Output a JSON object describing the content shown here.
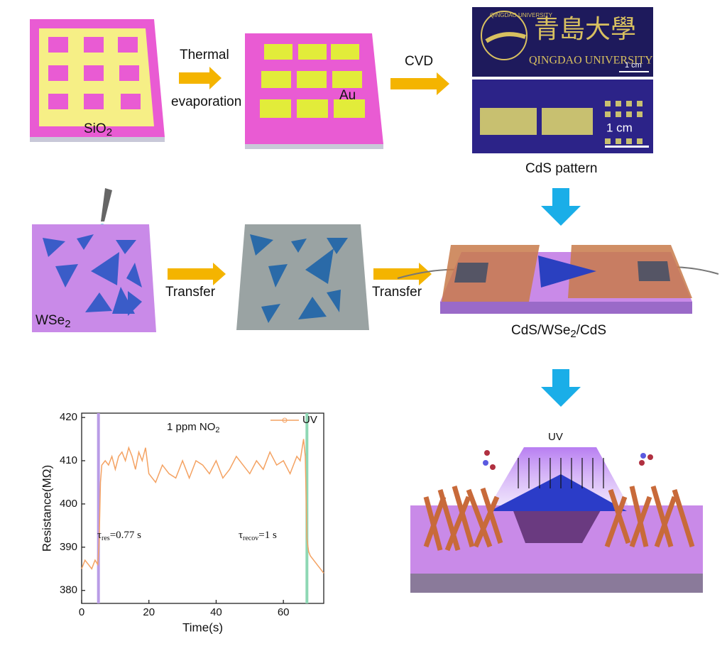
{
  "step1": {
    "substrate_label": [
      "SiO",
      "2"
    ]
  },
  "arrow1": {
    "label_top": "Thermal",
    "label_bottom": "evaporation"
  },
  "step2": {
    "label": "Au"
  },
  "arrow2": {
    "label": "CVD"
  },
  "photo": {
    "logo_chinese": "青島大學",
    "logo_english": "QINGDAO UNIVERSITY",
    "logo_ring": "QINGDAO UNIVERSITY",
    "scale_top": "1 cm",
    "scale_bottom": "1 cm",
    "caption": "CdS pattern"
  },
  "step3": {
    "label": [
      "WSe",
      "2"
    ]
  },
  "arrow3": {
    "label": "Transfer"
  },
  "arrow4": {
    "label": "Transfer"
  },
  "device": {
    "caption": [
      "CdS/WSe",
      "2",
      "/CdS"
    ]
  },
  "device_uv": {
    "label": "UV"
  },
  "chart_data": {
    "type": "line",
    "title": [
      "1 ppm NO",
      "2"
    ],
    "x_label": "Time(s)",
    "y_label": "Resistance(MΩ)",
    "xlim": [
      0,
      72
    ],
    "xticks": [
      0,
      20,
      40,
      60
    ],
    "ylim": [
      377,
      421
    ],
    "yticks": [
      380,
      390,
      400,
      410,
      420
    ],
    "legend": "upper right",
    "markers": [
      {
        "x": 5,
        "color": "#b99ce6"
      },
      {
        "x": 67,
        "color": "#8ed8b4"
      }
    ],
    "annotations": [
      [
        "τ",
        "res",
        "=0.77 s"
      ],
      [
        "τ",
        "recov",
        "=1 s"
      ]
    ],
    "series": [
      {
        "name": "UV",
        "color": "#f4a262",
        "x": [
          0,
          1,
          2,
          3,
          4,
          4.8,
          5.2,
          5.6,
          6,
          7,
          8,
          9,
          10,
          11,
          12,
          13,
          14,
          15,
          16,
          17,
          18,
          19,
          20,
          22,
          24,
          26,
          28,
          30,
          32,
          34,
          36,
          38,
          40,
          42,
          44,
          46,
          48,
          50,
          52,
          54,
          56,
          58,
          60,
          62,
          64,
          65,
          66,
          66.5,
          67,
          67.5,
          68,
          69,
          70,
          71,
          72
        ],
        "values": [
          385,
          387,
          386,
          385,
          387,
          386,
          391,
          405,
          409,
          410,
          409,
          411,
          408,
          411,
          412,
          410,
          413,
          411,
          408,
          412,
          410,
          413,
          407,
          405,
          409,
          407,
          406,
          410,
          406,
          410,
          409,
          407,
          410,
          406,
          408,
          411,
          409,
          407,
          410,
          408,
          412,
          409,
          410,
          407,
          411,
          410,
          415,
          411,
          392,
          389,
          388,
          387,
          386,
          385,
          384
        ]
      }
    ]
  }
}
